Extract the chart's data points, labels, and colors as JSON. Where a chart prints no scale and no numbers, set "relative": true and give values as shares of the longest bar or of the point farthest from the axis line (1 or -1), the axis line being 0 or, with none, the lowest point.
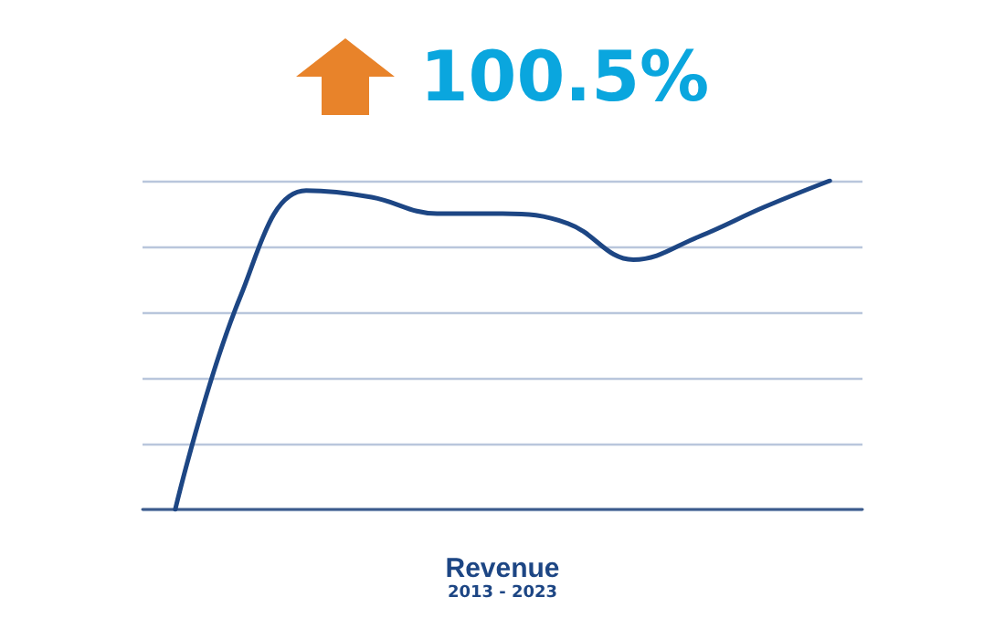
{
  "chart_data": {
    "type": "line",
    "title": "100.5%",
    "xlabel": "Revenue",
    "annotations": [
      "2013 - 2023"
    ],
    "relative": true,
    "categories": [
      null,
      null,
      null,
      null,
      null,
      null,
      null,
      null,
      null,
      null,
      null
    ],
    "series": [
      {
        "color": "#1d4684",
        "values": [
          0,
          0.65,
          0.97,
          0.95,
          0.9,
          0.9,
          0.87,
          0.76,
          0.83,
          0.92,
          1
        ]
      }
    ],
    "grid": "y",
    "marker": "none",
    "line_style": "solid"
  }
}
